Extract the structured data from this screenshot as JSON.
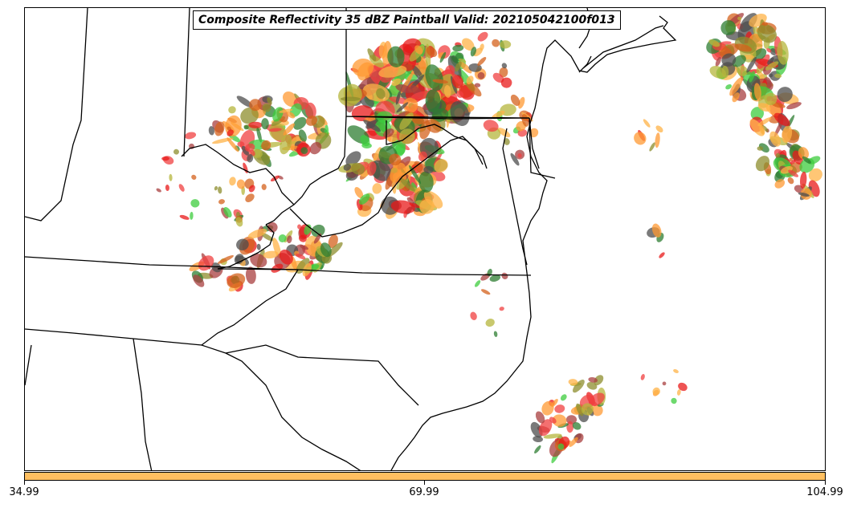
{
  "title": "Composite Reflectivity 35 dBZ Paintball Valid: 202105042100f013",
  "colorbar": {
    "color": "#FFBF60",
    "ticks": [
      "34.99",
      "69.99",
      "104.99"
    ]
  },
  "paint_colors": [
    "#E8191A",
    "#F04040",
    "#FF9A33",
    "#FFB347",
    "#3DCC3D",
    "#2E7D32",
    "#8E8E2E",
    "#A83F3F",
    "#4D4D4D",
    "#B5B53C",
    "#D4611C"
  ]
}
